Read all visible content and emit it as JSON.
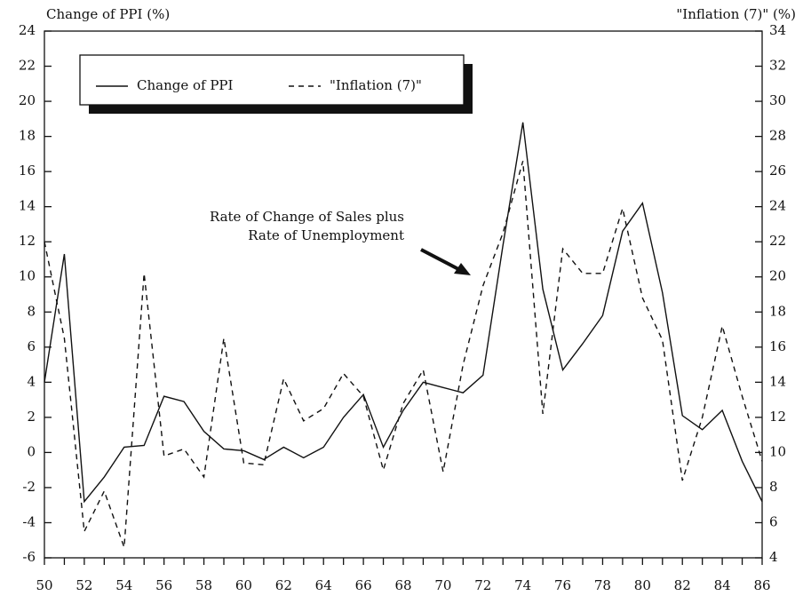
{
  "chart_data": {
    "type": "line",
    "y_label": "Change of PPI (%)",
    "y2_label": "\"Inflation (7)\" (%)",
    "annotation": [
      "Rate of Change of Sales plus",
      "Rate of Unemployment"
    ],
    "x": [
      50,
      51,
      52,
      53,
      54,
      55,
      56,
      57,
      58,
      59,
      60,
      61,
      62,
      63,
      64,
      65,
      66,
      67,
      68,
      69,
      70,
      71,
      72,
      73,
      74,
      75,
      76,
      77,
      78,
      79,
      80,
      81,
      82,
      83,
      84,
      85,
      86
    ],
    "series": [
      {
        "name": "Change of PPI",
        "color": "#111111",
        "dash": false,
        "values": [
          4.0,
          11.3,
          -2.8,
          -1.4,
          0.3,
          0.4,
          3.2,
          2.9,
          1.2,
          0.2,
          0.1,
          -0.4,
          0.3,
          -0.3,
          0.3,
          2.0,
          3.3,
          0.3,
          2.4,
          4.0,
          3.7,
          3.4,
          4.4,
          11.8,
          18.8,
          9.3,
          4.7,
          6.2,
          7.8,
          12.6,
          14.2,
          9.1,
          2.1,
          1.3,
          2.4,
          -0.5,
          -2.8
        ]
      },
      {
        "name": "\"Inflation (7)\"",
        "color": "#111111",
        "dash": true,
        "axis": "y2",
        "values": [
          22.0,
          16.5,
          5.5,
          7.8,
          4.6,
          20.2,
          9.8,
          10.2,
          8.6,
          16.5,
          9.4,
          9.3,
          14.2,
          11.8,
          12.5,
          14.5,
          13.2,
          9.0,
          12.8,
          14.7,
          8.9,
          15.0,
          19.5,
          22.5,
          26.6,
          12.2,
          21.6,
          20.2,
          20.2,
          23.9,
          18.8,
          16.4,
          8.4,
          12.0,
          17.2,
          13.2,
          9.5
        ]
      }
    ],
    "xlim": [
      50,
      86
    ],
    "xticks": [
      50,
      52,
      54,
      56,
      58,
      60,
      62,
      64,
      66,
      68,
      70,
      72,
      74,
      76,
      78,
      80,
      82,
      84,
      86
    ],
    "ylim": [
      -6,
      24
    ],
    "yticks": [
      -6,
      -4,
      -2,
      0,
      2,
      4,
      6,
      8,
      10,
      12,
      14,
      16,
      18,
      20,
      22,
      24
    ],
    "y2lim": [
      4,
      34
    ],
    "y2ticks": [
      4,
      6,
      8,
      10,
      12,
      14,
      16,
      18,
      20,
      22,
      24,
      26,
      28,
      30,
      32,
      34
    ]
  }
}
